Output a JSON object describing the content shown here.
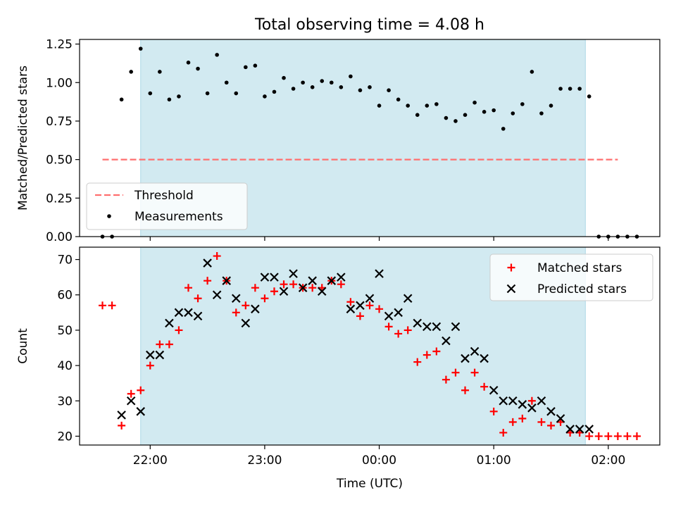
{
  "chart_data": [
    {
      "type": "scatter",
      "title": "Total observing time = 4.08 h",
      "xlabel": "",
      "ylabel": "Matched/Predicted stars",
      "ylim": [
        0,
        1.28
      ],
      "yticks": [
        "0.00",
        "0.25",
        "0.50",
        "0.75",
        "1.00",
        "1.25"
      ],
      "shaded_interval": [
        "21:55",
        "01:48"
      ],
      "shade_color": "#add8e6",
      "threshold": {
        "name": "Threshold",
        "value": 0.5,
        "x_start": "21:35",
        "x_end": "02:05",
        "color": "#ff6f6f"
      },
      "legend_position": "lower left",
      "series": [
        {
          "name": "Measurements",
          "color": "#000000",
          "points": [
            [
              "21:35",
              0.0
            ],
            [
              "21:40",
              0.0
            ],
            [
              "21:45",
              0.89
            ],
            [
              "21:50",
              1.07
            ],
            [
              "21:55",
              1.22
            ],
            [
              "22:00",
              0.93
            ],
            [
              "22:05",
              1.07
            ],
            [
              "22:10",
              0.89
            ],
            [
              "22:15",
              0.91
            ],
            [
              "22:20",
              1.13
            ],
            [
              "22:25",
              1.09
            ],
            [
              "22:30",
              0.93
            ],
            [
              "22:35",
              1.18
            ],
            [
              "22:40",
              1.0
            ],
            [
              "22:45",
              0.93
            ],
            [
              "22:50",
              1.1
            ],
            [
              "22:55",
              1.11
            ],
            [
              "23:00",
              0.91
            ],
            [
              "23:05",
              0.94
            ],
            [
              "23:10",
              1.03
            ],
            [
              "23:15",
              0.96
            ],
            [
              "23:20",
              1.0
            ],
            [
              "23:25",
              0.97
            ],
            [
              "23:30",
              1.01
            ],
            [
              "23:35",
              1.0
            ],
            [
              "23:40",
              0.97
            ],
            [
              "23:45",
              1.04
            ],
            [
              "23:50",
              0.95
            ],
            [
              "23:55",
              0.97
            ],
            [
              "00:00",
              0.85
            ],
            [
              "00:05",
              0.95
            ],
            [
              "00:10",
              0.89
            ],
            [
              "00:15",
              0.85
            ],
            [
              "00:20",
              0.79
            ],
            [
              "00:25",
              0.85
            ],
            [
              "00:30",
              0.86
            ],
            [
              "00:35",
              0.77
            ],
            [
              "00:40",
              0.75
            ],
            [
              "00:45",
              0.79
            ],
            [
              "00:50",
              0.87
            ],
            [
              "00:55",
              0.81
            ],
            [
              "01:00",
              0.82
            ],
            [
              "01:05",
              0.7
            ],
            [
              "01:10",
              0.8
            ],
            [
              "01:15",
              0.86
            ],
            [
              "01:20",
              1.07
            ],
            [
              "01:25",
              0.8
            ],
            [
              "01:30",
              0.85
            ],
            [
              "01:35",
              0.96
            ],
            [
              "01:40",
              0.96
            ],
            [
              "01:45",
              0.96
            ],
            [
              "01:50",
              0.91
            ],
            [
              "01:55",
              0.0
            ],
            [
              "02:00",
              0.0
            ],
            [
              "02:05",
              0.0
            ],
            [
              "02:10",
              0.0
            ],
            [
              "02:15",
              0.0
            ]
          ]
        }
      ]
    },
    {
      "type": "scatter",
      "title": "",
      "xlabel": "Time (UTC)",
      "ylabel": "Count",
      "ylim": [
        17.5,
        73.5
      ],
      "yticks": [
        "20",
        "30",
        "40",
        "50",
        "60",
        "70"
      ],
      "xticks": [
        "22:00",
        "23:00",
        "00:00",
        "01:00",
        "02:00"
      ],
      "shaded_interval": [
        "21:55",
        "01:48"
      ],
      "shade_color": "#add8e6",
      "legend_position": "upper right",
      "series": [
        {
          "name": "Matched stars",
          "marker": "+",
          "color": "#ff0000",
          "points": [
            [
              "21:35",
              57
            ],
            [
              "21:40",
              57
            ],
            [
              "21:45",
              23
            ],
            [
              "21:50",
              32
            ],
            [
              "21:55",
              33
            ],
            [
              "22:00",
              40
            ],
            [
              "22:05",
              46
            ],
            [
              "22:10",
              46
            ],
            [
              "22:15",
              50
            ],
            [
              "22:20",
              62
            ],
            [
              "22:25",
              59
            ],
            [
              "22:30",
              64
            ],
            [
              "22:35",
              71
            ],
            [
              "22:40",
              64
            ],
            [
              "22:45",
              55
            ],
            [
              "22:50",
              57
            ],
            [
              "22:55",
              62
            ],
            [
              "23:00",
              59
            ],
            [
              "23:05",
              61
            ],
            [
              "23:10",
              63
            ],
            [
              "23:15",
              63
            ],
            [
              "23:20",
              62
            ],
            [
              "23:25",
              62
            ],
            [
              "23:30",
              62
            ],
            [
              "23:35",
              64
            ],
            [
              "23:40",
              63
            ],
            [
              "23:45",
              58
            ],
            [
              "23:50",
              54
            ],
            [
              "23:55",
              57
            ],
            [
              "00:00",
              56
            ],
            [
              "00:05",
              51
            ],
            [
              "00:10",
              49
            ],
            [
              "00:15",
              50
            ],
            [
              "00:20",
              41
            ],
            [
              "00:25",
              43
            ],
            [
              "00:30",
              44
            ],
            [
              "00:35",
              36
            ],
            [
              "00:40",
              38
            ],
            [
              "00:45",
              33
            ],
            [
              "00:50",
              38
            ],
            [
              "00:55",
              34
            ],
            [
              "01:00",
              27
            ],
            [
              "01:05",
              21
            ],
            [
              "01:10",
              24
            ],
            [
              "01:15",
              25
            ],
            [
              "01:20",
              30
            ],
            [
              "01:25",
              24
            ],
            [
              "01:30",
              23
            ],
            [
              "01:35",
              24
            ],
            [
              "01:40",
              21
            ],
            [
              "01:45",
              21
            ],
            [
              "01:50",
              20
            ],
            [
              "01:55",
              20
            ],
            [
              "02:00",
              20
            ],
            [
              "02:05",
              20
            ],
            [
              "02:10",
              20
            ],
            [
              "02:15",
              20
            ]
          ]
        },
        {
          "name": "Predicted stars",
          "marker": "x",
          "color": "#000000",
          "points": [
            [
              "21:45",
              26
            ],
            [
              "21:50",
              30
            ],
            [
              "21:55",
              27
            ],
            [
              "22:00",
              43
            ],
            [
              "22:05",
              43
            ],
            [
              "22:10",
              52
            ],
            [
              "22:15",
              55
            ],
            [
              "22:20",
              55
            ],
            [
              "22:25",
              54
            ],
            [
              "22:30",
              69
            ],
            [
              "22:35",
              60
            ],
            [
              "22:40",
              64
            ],
            [
              "22:45",
              59
            ],
            [
              "22:50",
              52
            ],
            [
              "22:55",
              56
            ],
            [
              "23:00",
              65
            ],
            [
              "23:05",
              65
            ],
            [
              "23:10",
              61
            ],
            [
              "23:15",
              66
            ],
            [
              "23:20",
              62
            ],
            [
              "23:25",
              64
            ],
            [
              "23:30",
              61
            ],
            [
              "23:35",
              64
            ],
            [
              "23:40",
              65
            ],
            [
              "23:45",
              56
            ],
            [
              "23:50",
              57
            ],
            [
              "23:55",
              59
            ],
            [
              "00:00",
              66
            ],
            [
              "00:05",
              54
            ],
            [
              "00:10",
              55
            ],
            [
              "00:15",
              59
            ],
            [
              "00:20",
              52
            ],
            [
              "00:25",
              51
            ],
            [
              "00:30",
              51
            ],
            [
              "00:35",
              47
            ],
            [
              "00:40",
              51
            ],
            [
              "00:45",
              42
            ],
            [
              "00:50",
              44
            ],
            [
              "00:55",
              42
            ],
            [
              "01:00",
              33
            ],
            [
              "01:05",
              30
            ],
            [
              "01:10",
              30
            ],
            [
              "01:15",
              29
            ],
            [
              "01:20",
              28
            ],
            [
              "01:25",
              30
            ],
            [
              "01:30",
              27
            ],
            [
              "01:35",
              25
            ],
            [
              "01:40",
              22
            ],
            [
              "01:45",
              22
            ],
            [
              "01:50",
              22
            ]
          ]
        }
      ]
    }
  ]
}
